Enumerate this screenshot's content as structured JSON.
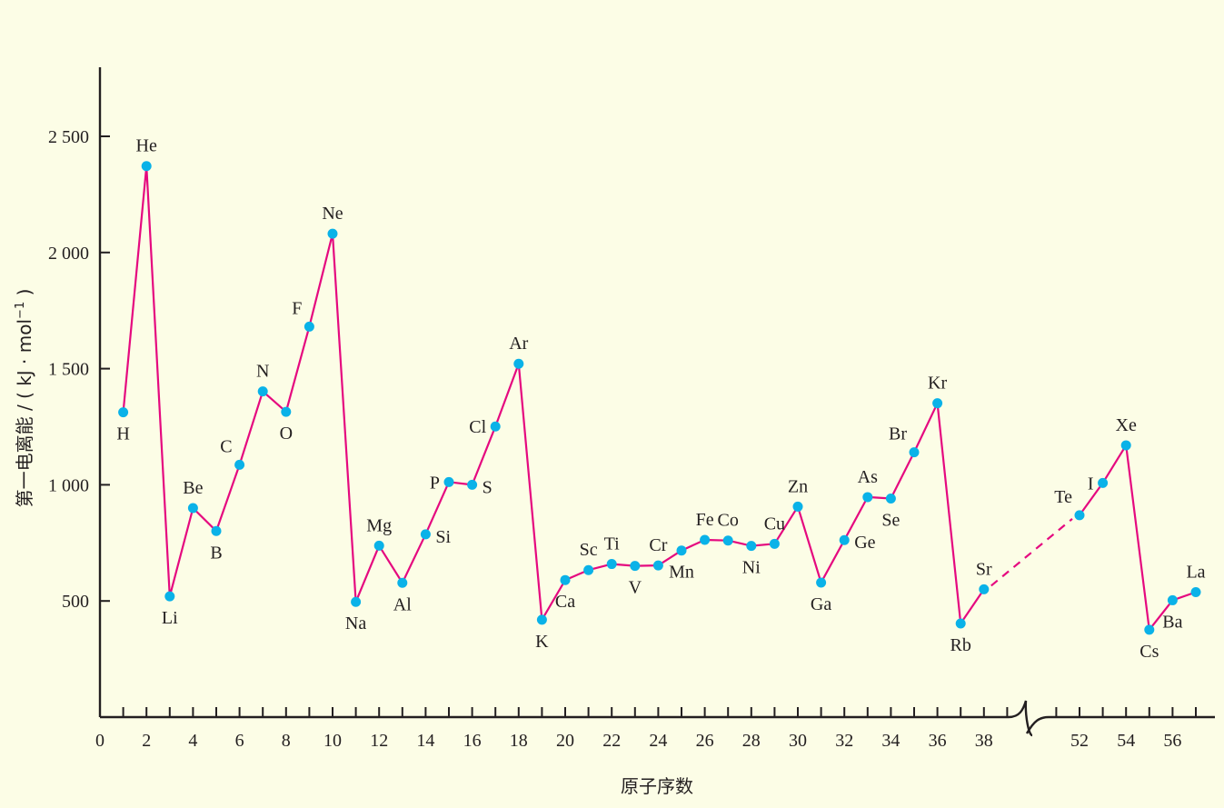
{
  "chart_data": {
    "type": "line",
    "xlabel": "原子序数",
    "ylabel": "第一电离能 / ( kJ · mol",
    "ylabel_sup": "−1",
    "ylabel_close": " )",
    "xlim": [
      0,
      57.5
    ],
    "ylim": [
      0,
      2800
    ],
    "y_ticks": [
      {
        "value": 500,
        "label": "500"
      },
      {
        "value": 1000,
        "label": "1 000"
      },
      {
        "value": 1500,
        "label": "1 500"
      },
      {
        "value": 2000,
        "label": "2 000"
      },
      {
        "value": 2500,
        "label": "2 500"
      }
    ],
    "x_ticks_minor_range": [
      1,
      39
    ],
    "x_ticks_minor_second": [
      51,
      57
    ],
    "x_tick_labels": [
      {
        "value": 0,
        "label": "0"
      },
      {
        "value": 2,
        "label": "2"
      },
      {
        "value": 4,
        "label": "4"
      },
      {
        "value": 6,
        "label": "6"
      },
      {
        "value": 8,
        "label": "8"
      },
      {
        "value": 10,
        "label": "10"
      },
      {
        "value": 12,
        "label": "12"
      },
      {
        "value": 14,
        "label": "14"
      },
      {
        "value": 16,
        "label": "16"
      },
      {
        "value": 18,
        "label": "18"
      },
      {
        "value": 20,
        "label": "20"
      },
      {
        "value": 22,
        "label": "22"
      },
      {
        "value": 24,
        "label": "24"
      },
      {
        "value": 26,
        "label": "26"
      },
      {
        "value": 28,
        "label": "28"
      },
      {
        "value": 30,
        "label": "30"
      },
      {
        "value": 32,
        "label": "32"
      },
      {
        "value": 34,
        "label": "34"
      },
      {
        "value": 36,
        "label": "36"
      },
      {
        "value": 38,
        "label": "38"
      },
      {
        "value": 52,
        "label": "52"
      },
      {
        "value": 54,
        "label": "54"
      },
      {
        "value": 56,
        "label": "56"
      }
    ],
    "axis_break": {
      "from": 39,
      "to": 51
    },
    "series": [
      {
        "points": [
          {
            "x": 1,
            "y": 1312,
            "label": "H",
            "pos": "below"
          },
          {
            "x": 2,
            "y": 2372,
            "label": "He",
            "pos": "above"
          },
          {
            "x": 3,
            "y": 520,
            "label": "Li",
            "pos": "below"
          },
          {
            "x": 4,
            "y": 900,
            "label": "Be",
            "pos": "above"
          },
          {
            "x": 5,
            "y": 801,
            "label": "B",
            "pos": "below"
          },
          {
            "x": 6,
            "y": 1086,
            "label": "C",
            "pos": "above-left"
          },
          {
            "x": 7,
            "y": 1402,
            "label": "N",
            "pos": "above"
          },
          {
            "x": 8,
            "y": 1314,
            "label": "O",
            "pos": "below"
          },
          {
            "x": 9,
            "y": 1681,
            "label": "F",
            "pos": "above-left"
          },
          {
            "x": 10,
            "y": 2081,
            "label": "Ne",
            "pos": "above"
          },
          {
            "x": 11,
            "y": 496,
            "label": "Na",
            "pos": "below"
          },
          {
            "x": 12,
            "y": 738,
            "label": "Mg",
            "pos": "above"
          },
          {
            "x": 13,
            "y": 578,
            "label": "Al",
            "pos": "below"
          },
          {
            "x": 14,
            "y": 787,
            "label": "Si",
            "pos": "right"
          },
          {
            "x": 15,
            "y": 1012,
            "label": "P",
            "pos": "left"
          },
          {
            "x": 16,
            "y": 1000,
            "label": "S",
            "pos": "right"
          },
          {
            "x": 17,
            "y": 1251,
            "label": "Cl",
            "pos": "left"
          },
          {
            "x": 18,
            "y": 1521,
            "label": "Ar",
            "pos": "above"
          },
          {
            "x": 19,
            "y": 419,
            "label": "K",
            "pos": "below"
          },
          {
            "x": 20,
            "y": 590,
            "label": "Ca",
            "pos": "below"
          },
          {
            "x": 21,
            "y": 633,
            "label": "Sc",
            "pos": "above"
          },
          {
            "x": 22,
            "y": 659,
            "label": "Ti",
            "pos": "above"
          },
          {
            "x": 23,
            "y": 651,
            "label": "V",
            "pos": "below"
          },
          {
            "x": 24,
            "y": 653,
            "label": "Cr",
            "pos": "above"
          },
          {
            "x": 25,
            "y": 717,
            "label": "Mn",
            "pos": "below"
          },
          {
            "x": 26,
            "y": 763,
            "label": "Fe",
            "pos": "above"
          },
          {
            "x": 27,
            "y": 760,
            "label": "Co",
            "pos": "above"
          },
          {
            "x": 28,
            "y": 737,
            "label": "Ni",
            "pos": "below"
          },
          {
            "x": 29,
            "y": 746,
            "label": "Cu",
            "pos": "above"
          },
          {
            "x": 30,
            "y": 906,
            "label": "Zn",
            "pos": "above"
          },
          {
            "x": 31,
            "y": 579,
            "label": "Ga",
            "pos": "below"
          },
          {
            "x": 32,
            "y": 762,
            "label": "Ge",
            "pos": "right"
          },
          {
            "x": 33,
            "y": 947,
            "label": "As",
            "pos": "above"
          },
          {
            "x": 34,
            "y": 941,
            "label": "Se",
            "pos": "below"
          },
          {
            "x": 35,
            "y": 1140,
            "label": "Br",
            "pos": "above-left"
          },
          {
            "x": 36,
            "y": 1351,
            "label": "Kr",
            "pos": "above"
          },
          {
            "x": 37,
            "y": 403,
            "label": "Rb",
            "pos": "below"
          },
          {
            "x": 38,
            "y": 550,
            "label": "Sr",
            "pos": "above"
          },
          {
            "x": 52,
            "y": 869,
            "label": "Te",
            "pos": "above-left"
          },
          {
            "x": 53,
            "y": 1008,
            "label": "I",
            "pos": "left"
          },
          {
            "x": 54,
            "y": 1170,
            "label": "Xe",
            "pos": "above"
          },
          {
            "x": 55,
            "y": 376,
            "label": "Cs",
            "pos": "below"
          },
          {
            "x": 56,
            "y": 503,
            "label": "Ba",
            "pos": "below"
          },
          {
            "x": 57,
            "y": 538,
            "label": "La",
            "pos": "above"
          }
        ],
        "dashed_segment": [
          38,
          52
        ]
      }
    ],
    "grid": false,
    "legend": "none"
  },
  "colors": {
    "background": "#fcfde6",
    "line": "#e5097f",
    "point": "#0ab2e8",
    "axis": "#231f20"
  }
}
